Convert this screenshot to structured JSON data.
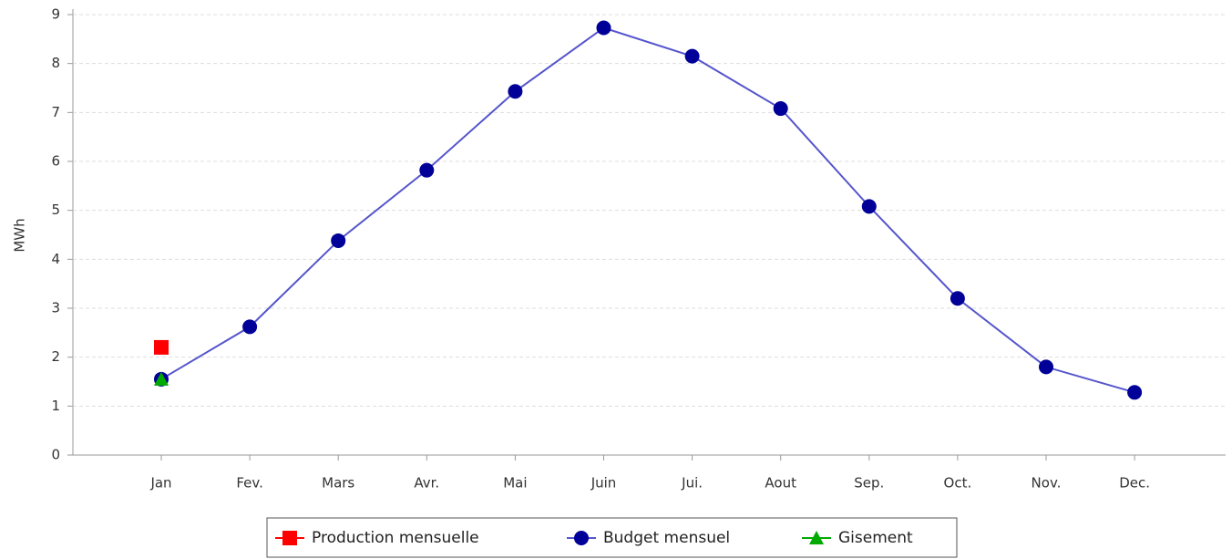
{
  "chart_data": {
    "type": "line",
    "y_label": "MWh",
    "categories": [
      "Jan",
      "Fev.",
      "Mars",
      "Avr.",
      "Mai",
      "Juin",
      "Jui.",
      "Aout",
      "Sep.",
      "Oct.",
      "Nov.",
      "Dec."
    ],
    "series": [
      {
        "name": "Production mensuelle",
        "color": "#ff0000",
        "marker": "square",
        "values": [
          2.2,
          null,
          null,
          null,
          null,
          null,
          null,
          null,
          null,
          null,
          null,
          null
        ]
      },
      {
        "name": "Budget mensuel",
        "color": "#000099",
        "line_color": "#5555cc",
        "marker": "circle",
        "values": [
          1.55,
          2.62,
          4.38,
          5.82,
          7.43,
          8.73,
          8.15,
          7.08,
          5.08,
          3.2,
          1.8,
          1.28
        ]
      },
      {
        "name": "Gisement",
        "color": "#00aa00",
        "marker": "triangle",
        "values": [
          1.55,
          null,
          null,
          null,
          null,
          null,
          null,
          null,
          null,
          null,
          null,
          null
        ]
      }
    ],
    "ylim": [
      0,
      9
    ],
    "yticks": [
      0,
      1,
      2,
      3,
      4,
      5,
      6,
      7,
      8,
      9
    ],
    "grid": true,
    "legend": "bottom"
  }
}
